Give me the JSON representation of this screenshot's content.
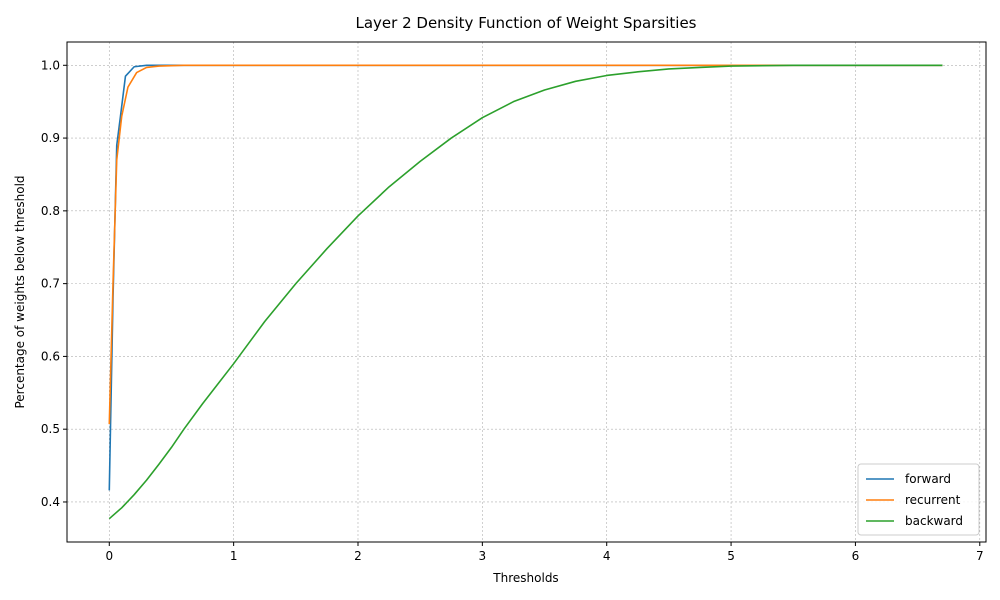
{
  "chart_data": {
    "type": "line",
    "title": "Layer 2 Density Function of Weight Sparsities",
    "xlabel": "Thresholds",
    "ylabel": "Percentage of weights below threshold",
    "xlim": [
      -0.34,
      7.05
    ],
    "ylim": [
      0.345,
      1.032
    ],
    "xticks": [
      0,
      1,
      2,
      3,
      4,
      5,
      6,
      7
    ],
    "yticks": [
      0.4,
      0.5,
      0.6,
      0.7,
      0.8,
      0.9,
      1.0
    ],
    "grid": true,
    "legend_position": "lower-right",
    "series": [
      {
        "name": "forward",
        "color": "#1f77b4",
        "points": [
          [
            0.0,
            0.416
          ],
          [
            0.01,
            0.505
          ],
          [
            0.03,
            0.68
          ],
          [
            0.06,
            0.89
          ],
          [
            0.09,
            0.93
          ],
          [
            0.13,
            0.985
          ],
          [
            0.2,
            0.998
          ],
          [
            0.3,
            1.0
          ],
          [
            6.7,
            1.0
          ]
        ]
      },
      {
        "name": "recurrent",
        "color": "#ff7f0e",
        "points": [
          [
            0.0,
            0.507
          ],
          [
            0.03,
            0.7
          ],
          [
            0.06,
            0.87
          ],
          [
            0.1,
            0.93
          ],
          [
            0.15,
            0.97
          ],
          [
            0.22,
            0.99
          ],
          [
            0.3,
            0.997
          ],
          [
            0.4,
            0.999
          ],
          [
            0.6,
            1.0
          ],
          [
            6.7,
            1.0
          ]
        ]
      },
      {
        "name": "backward",
        "color": "#2ca02c",
        "points": [
          [
            0.0,
            0.377
          ],
          [
            0.1,
            0.392
          ],
          [
            0.2,
            0.41
          ],
          [
            0.3,
            0.43
          ],
          [
            0.4,
            0.452
          ],
          [
            0.5,
            0.475
          ],
          [
            0.6,
            0.5
          ],
          [
            0.75,
            0.535
          ],
          [
            1.0,
            0.59
          ],
          [
            1.25,
            0.648
          ],
          [
            1.5,
            0.7
          ],
          [
            1.75,
            0.748
          ],
          [
            2.0,
            0.793
          ],
          [
            2.25,
            0.833
          ],
          [
            2.5,
            0.868
          ],
          [
            2.75,
            0.9
          ],
          [
            3.0,
            0.928
          ],
          [
            3.25,
            0.95
          ],
          [
            3.5,
            0.966
          ],
          [
            3.75,
            0.978
          ],
          [
            4.0,
            0.986
          ],
          [
            4.25,
            0.991
          ],
          [
            4.5,
            0.995
          ],
          [
            4.75,
            0.997
          ],
          [
            5.0,
            0.999
          ],
          [
            5.5,
            1.0
          ],
          [
            6.0,
            1.0
          ],
          [
            6.7,
            1.0
          ]
        ]
      }
    ]
  }
}
